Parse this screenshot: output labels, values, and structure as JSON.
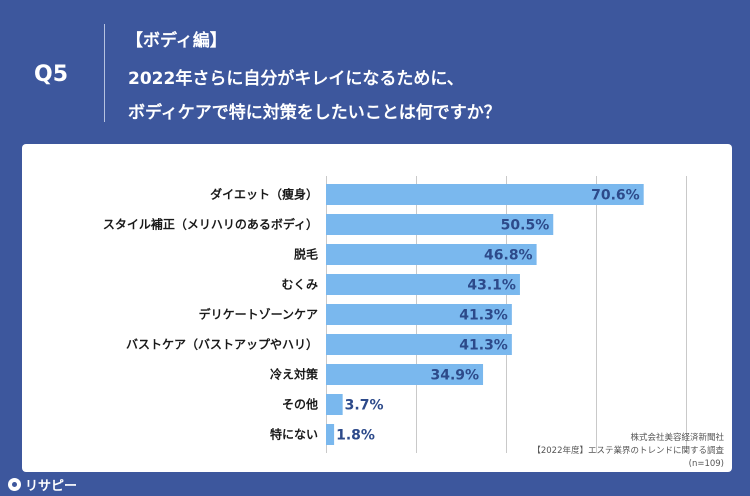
{
  "header": {
    "question": "Q5",
    "subtitle": "【ボディ編】",
    "title_line1": "2022年さらに自分がキレイになるために、",
    "title_line2": "ボディケアで特に対策をしたいことは何ですか？"
  },
  "source": {
    "line1": "株式会社美容経済新聞社",
    "line2": "【2022年度】エステ業界のトレンドに関する調査",
    "line3": "(n=109)"
  },
  "logo": {
    "text": "リサピー"
  },
  "colors": {
    "background": "#3d579d",
    "bar": "#7ab8ee",
    "value_text": "#2d4a8a",
    "panel": "#ffffff"
  },
  "chart_data": {
    "type": "bar",
    "orientation": "horizontal",
    "categories": [
      "ダイエット（痩身）",
      "スタイル補正（メリハリのあるボディ）",
      "脱毛",
      "むくみ",
      "デリケートゾーンケア",
      "バストケア（バストアップやハリ）",
      "冷え対策",
      "その他",
      "特にない"
    ],
    "values": [
      70.6,
      50.5,
      46.8,
      43.1,
      41.3,
      41.3,
      34.9,
      3.7,
      1.8
    ],
    "value_labels": [
      "70.6%",
      "50.5%",
      "46.8%",
      "43.1%",
      "41.3%",
      "41.3%",
      "34.9%",
      "3.7%",
      "1.8%"
    ],
    "xlim": [
      0,
      80
    ],
    "grid": true,
    "legend": "none"
  }
}
